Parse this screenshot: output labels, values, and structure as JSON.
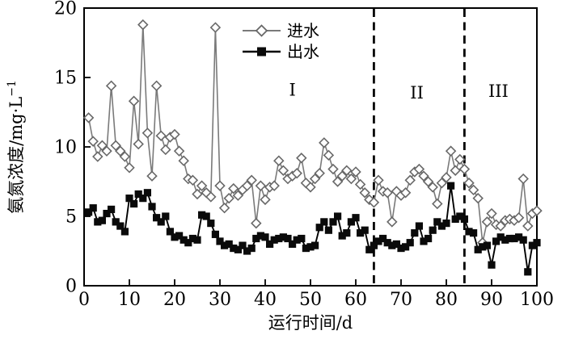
{
  "chart_data": {
    "type": "line",
    "title": "",
    "xlabel": "运行时间/d",
    "ylabel": "氨氮浓度/mg·L⁻¹",
    "ylabel_main": "氨氮浓度/mg·L",
    "ylabel_sup": "−1",
    "xlim": [
      0,
      100
    ],
    "ylim": [
      0,
      20
    ],
    "x_ticks": [
      0,
      10,
      20,
      30,
      40,
      50,
      60,
      70,
      80,
      90,
      100
    ],
    "y_ticks": [
      0,
      5,
      10,
      15,
      20
    ],
    "grid": false,
    "legend_position": "inside-top-center",
    "x": [
      1,
      2,
      3,
      4,
      5,
      6,
      7,
      8,
      9,
      10,
      11,
      12,
      13,
      14,
      15,
      16,
      17,
      18,
      19,
      20,
      21,
      22,
      23,
      24,
      25,
      26,
      27,
      28,
      29,
      30,
      31,
      32,
      33,
      34,
      35,
      36,
      37,
      38,
      39,
      40,
      41,
      42,
      43,
      44,
      45,
      46,
      47,
      48,
      49,
      50,
      51,
      52,
      53,
      54,
      55,
      56,
      57,
      58,
      59,
      60,
      61,
      62,
      63,
      64,
      65,
      66,
      67,
      68,
      69,
      70,
      71,
      72,
      73,
      74,
      75,
      76,
      77,
      78,
      79,
      80,
      81,
      82,
      83,
      84,
      85,
      86,
      87,
      88,
      89,
      90,
      91,
      92,
      93,
      94,
      95,
      96,
      97,
      98,
      99,
      100
    ],
    "series": [
      {
        "name": "进水",
        "marker": "open-diamond",
        "line_color": "#7a7a7a",
        "marker_stroke": "#686868",
        "marker_fill": "#ffffff",
        "values": [
          12.1,
          10.4,
          9.3,
          10.1,
          9.7,
          14.4,
          10.1,
          9.7,
          9.3,
          8.5,
          13.3,
          10.2,
          18.8,
          11.0,
          7.9,
          14.4,
          10.8,
          9.8,
          10.7,
          10.9,
          9.7,
          9.0,
          7.7,
          7.6,
          6.6,
          7.2,
          6.7,
          6.4,
          18.6,
          7.2,
          5.6,
          6.3,
          7.0,
          6.5,
          6.9,
          7.2,
          7.6,
          4.5,
          7.2,
          6.2,
          7.1,
          7.2,
          9.0,
          8.3,
          7.7,
          7.9,
          8.1,
          9.2,
          7.4,
          7.1,
          7.7,
          8.1,
          10.3,
          9.4,
          8.4,
          7.5,
          7.9,
          8.3,
          7.7,
          8.2,
          7.3,
          6.7,
          6.2,
          6.0,
          7.6,
          6.8,
          6.7,
          4.6,
          6.8,
          6.5,
          6.7,
          7.6,
          8.2,
          8.4,
          7.9,
          7.5,
          7.1,
          5.9,
          7.4,
          7.8,
          9.7,
          8.3,
          9.1,
          8.4,
          7.4,
          6.9,
          6.3,
          3.1,
          4.6,
          5.2,
          4.4,
          4.3,
          4.7,
          4.8,
          4.7,
          4.9,
          7.7,
          4.3,
          5.2,
          5.4
        ]
      },
      {
        "name": "出水",
        "marker": "filled-square",
        "line_color": "#000000",
        "marker_stroke": "#000000",
        "marker_fill": "#0a0a0a",
        "values": [
          5.3,
          5.6,
          4.6,
          4.7,
          5.2,
          5.5,
          4.6,
          4.3,
          3.9,
          6.3,
          5.9,
          6.6,
          6.3,
          6.7,
          5.7,
          4.9,
          4.6,
          5.0,
          3.9,
          3.5,
          3.6,
          3.3,
          3.1,
          3.4,
          3.3,
          5.1,
          5.0,
          4.5,
          3.7,
          3.2,
          2.9,
          3.0,
          2.7,
          2.6,
          2.9,
          2.5,
          2.7,
          3.4,
          3.6,
          3.5,
          3.0,
          3.3,
          3.4,
          3.5,
          3.4,
          3.0,
          3.3,
          3.4,
          2.7,
          2.8,
          2.9,
          4.2,
          4.6,
          4.0,
          4.6,
          5.0,
          3.6,
          3.8,
          4.6,
          4.9,
          3.8,
          4.0,
          2.6,
          2.9,
          3.2,
          3.4,
          3.1,
          2.9,
          3.0,
          2.7,
          2.8,
          3.1,
          3.8,
          4.3,
          3.2,
          3.4,
          4.0,
          4.6,
          4.3,
          4.5,
          7.2,
          4.8,
          5.0,
          4.8,
          3.9,
          3.8,
          2.6,
          2.8,
          2.9,
          1.5,
          3.2,
          3.5,
          3.3,
          3.4,
          3.4,
          3.5,
          3.3,
          1.0,
          2.9,
          3.1
        ]
      }
    ],
    "phase_dividers": [
      {
        "x": 64,
        "style": "dashed"
      },
      {
        "x": 84,
        "style": "dashed"
      }
    ],
    "annotations": [
      {
        "text": "I",
        "x": 46.0,
        "y": 13.7
      },
      {
        "text": "II",
        "x": 73.5,
        "y": 13.5
      },
      {
        "text": "III",
        "x": 91.5,
        "y": 13.6
      }
    ],
    "frame_color": "#000000",
    "background": "#ffffff"
  }
}
